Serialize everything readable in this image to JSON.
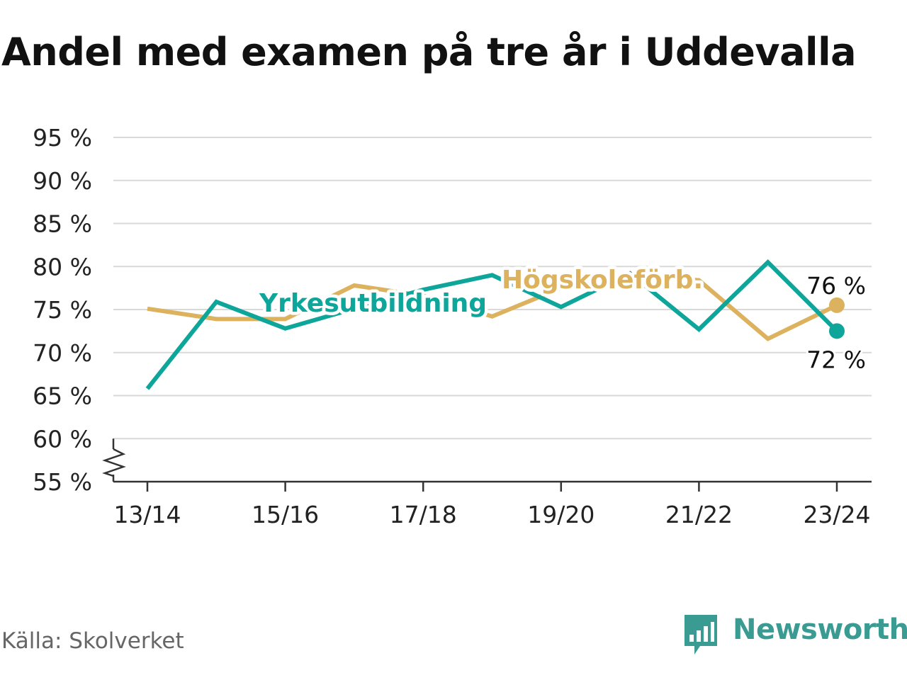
{
  "title": "Andel med examen på tre år i Uddevalla",
  "source": "Källa: Skolverket",
  "brand": "Newsworthy",
  "colors": {
    "teal": "#0ea59a",
    "gold": "#dcb25e",
    "grid": "#d9d9d9",
    "axis": "#333333",
    "text": "#111111",
    "brand": "#3a9b92"
  },
  "icons": [
    "newsworthy-logo-icon",
    "axis-break-icon"
  ],
  "chart_data": {
    "type": "line",
    "x": [
      "13/14",
      "14/15",
      "15/16",
      "16/17",
      "17/18",
      "18/19",
      "19/20",
      "20/21",
      "21/22",
      "22/23",
      "23/24"
    ],
    "xticks": [
      "13/14",
      "15/16",
      "17/18",
      "19/20",
      "21/22",
      "23/24"
    ],
    "yticks": [
      "95 %",
      "90 %",
      "85 %",
      "80 %",
      "75 %",
      "70 %",
      "65 %",
      "60 %",
      "55 %"
    ],
    "ytick_values": [
      95,
      90,
      85,
      80,
      75,
      70,
      65,
      60,
      55
    ],
    "ylim": [
      55,
      95
    ],
    "axis_break": true,
    "grid": true,
    "series": [
      {
        "name": "Högskoleförb.",
        "color": "#dcb25e",
        "values": [
          75.1,
          73.9,
          73.9,
          77.8,
          76.6,
          74.2,
          77.5,
          79.1,
          78.4,
          71.6,
          75.5
        ],
        "end_label": "76 %"
      },
      {
        "name": "Yrkesutbildning",
        "color": "#0ea59a",
        "values": [
          65.8,
          75.9,
          72.8,
          75.1,
          77.3,
          79.0,
          75.3,
          79.2,
          72.7,
          80.5,
          72.5
        ],
        "end_label": "72 %"
      }
    ]
  }
}
